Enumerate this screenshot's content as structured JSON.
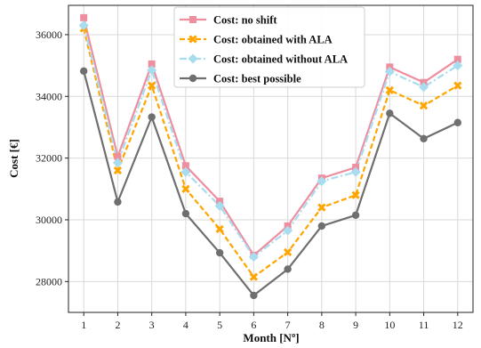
{
  "chart_data": {
    "type": "line",
    "title": "",
    "xlabel": "Month [Nº]",
    "ylabel": "Cost [€]",
    "x": [
      1,
      2,
      3,
      4,
      5,
      6,
      7,
      8,
      9,
      10,
      11,
      12
    ],
    "xlim": [
      0.55,
      12.45
    ],
    "ylim": [
      27000,
      36950
    ],
    "yticks": [
      28000,
      30000,
      32000,
      34000,
      36000
    ],
    "grid": true,
    "legend_position": "top-center",
    "series": [
      {
        "name": "Cost: no shift",
        "color": "#ee8f9f",
        "linestyle": "solid",
        "marker": "square",
        "values": [
          36550,
          32050,
          35050,
          31750,
          30600,
          28850,
          29800,
          31350,
          31700,
          34950,
          34450,
          35200
        ]
      },
      {
        "name": "Cost: obtained with ALA",
        "color": "#ffa500",
        "linestyle": "dashed",
        "marker": "x",
        "values": [
          36200,
          31600,
          34350,
          31000,
          29700,
          28150,
          28950,
          30400,
          30800,
          34200,
          33700,
          34350
        ]
      },
      {
        "name": "Cost: obtained without ALA",
        "color": "#a8dcef",
        "linestyle": "dashdot",
        "marker": "diamond",
        "values": [
          36300,
          31850,
          34850,
          31550,
          30450,
          28800,
          29650,
          31250,
          31550,
          34800,
          34300,
          35000
        ]
      },
      {
        "name": "Cost: best possible",
        "color": "#6f6f6f",
        "linestyle": "solid",
        "marker": "circle",
        "values": [
          34820,
          30580,
          33330,
          30200,
          28930,
          27550,
          28400,
          29800,
          30150,
          33450,
          32630,
          33150
        ]
      }
    ]
  }
}
